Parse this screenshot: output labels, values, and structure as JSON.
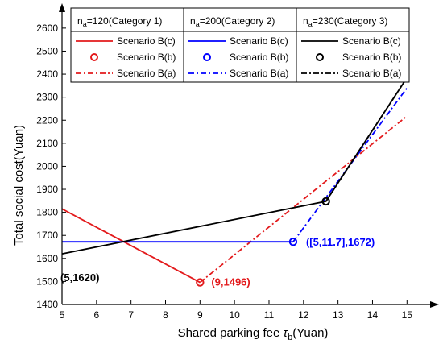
{
  "chart_data": {
    "type": "line",
    "xlabel": "Shared parking fee",
    "xlabel_symbol": "τ",
    "xlabel_sub": "b",
    "xlabel_unit": "(Yuan)",
    "ylabel": "Total social cost(Yuan)",
    "xlim": [
      5,
      15.6
    ],
    "ylim": [
      1400,
      2680
    ],
    "xticks": [
      5,
      6,
      7,
      8,
      9,
      10,
      11,
      12,
      13,
      14,
      15
    ],
    "yticks": [
      1400,
      1500,
      1600,
      1700,
      1800,
      1900,
      2000,
      2100,
      2200,
      2300,
      2400,
      2500,
      2600
    ],
    "grid": false,
    "legend_position": "top",
    "categories": [
      {
        "head_n": "n",
        "head_sub": "a",
        "head_rest": "=120(Category 1)",
        "color": "#e31a1c",
        "series": [
          {
            "name": "Scenario B(c)",
            "style": "solid",
            "x": [
              5,
              9
            ],
            "y": [
              1815,
              1496
            ]
          },
          {
            "name": "Scenario B(b)",
            "style": "marker",
            "x": [
              9
            ],
            "y": [
              1496
            ]
          },
          {
            "name": "Scenario B(a)",
            "style": "dashdot",
            "x": [
              9,
              15
            ],
            "y": [
              1496,
              2218
            ]
          }
        ]
      },
      {
        "head_n": "n",
        "head_sub": "a",
        "head_rest": "=200(Category 2)",
        "color": "#0000ff",
        "series": [
          {
            "name": "Scenario B(c)",
            "style": "solid",
            "x": [
              5,
              11.7
            ],
            "y": [
              1672,
              1672
            ]
          },
          {
            "name": "Scenario B(b)",
            "style": "marker",
            "x": [
              11.7
            ],
            "y": [
              1672
            ]
          },
          {
            "name": "Scenario B(a)",
            "style": "dashdot",
            "x": [
              11.7,
              15
            ],
            "y": [
              1672,
              2340
            ]
          }
        ]
      },
      {
        "head_n": "n",
        "head_sub": "a",
        "head_rest": "=230(Category 3)",
        "color": "#000000",
        "series": [
          {
            "name": "Scenario B(c)",
            "style": "solid",
            "x": [
              5,
              12.65,
              15
            ],
            "y": [
              1620,
              1848,
              2385
            ]
          },
          {
            "name": "Scenario B(b)",
            "style": "marker",
            "x": [
              12.65
            ],
            "y": [
              1848
            ]
          },
          {
            "name": "Scenario B(a)",
            "style": "dashdot",
            "x": [
              12.65,
              15
            ],
            "y": [
              1848,
              2385
            ]
          }
        ]
      }
    ],
    "annotations": [
      {
        "text": "(5,1620)",
        "color": "#000000",
        "anchor_x": 5,
        "anchor_y": 1620
      },
      {
        "text": "(9,1496)",
        "color": "#e31a1c",
        "anchor_x": 9,
        "anchor_y": 1496
      },
      {
        "text": "([5,11.7],1672)",
        "color": "#0000ff",
        "anchor_x": 11.7,
        "anchor_y": 1672
      }
    ]
  }
}
